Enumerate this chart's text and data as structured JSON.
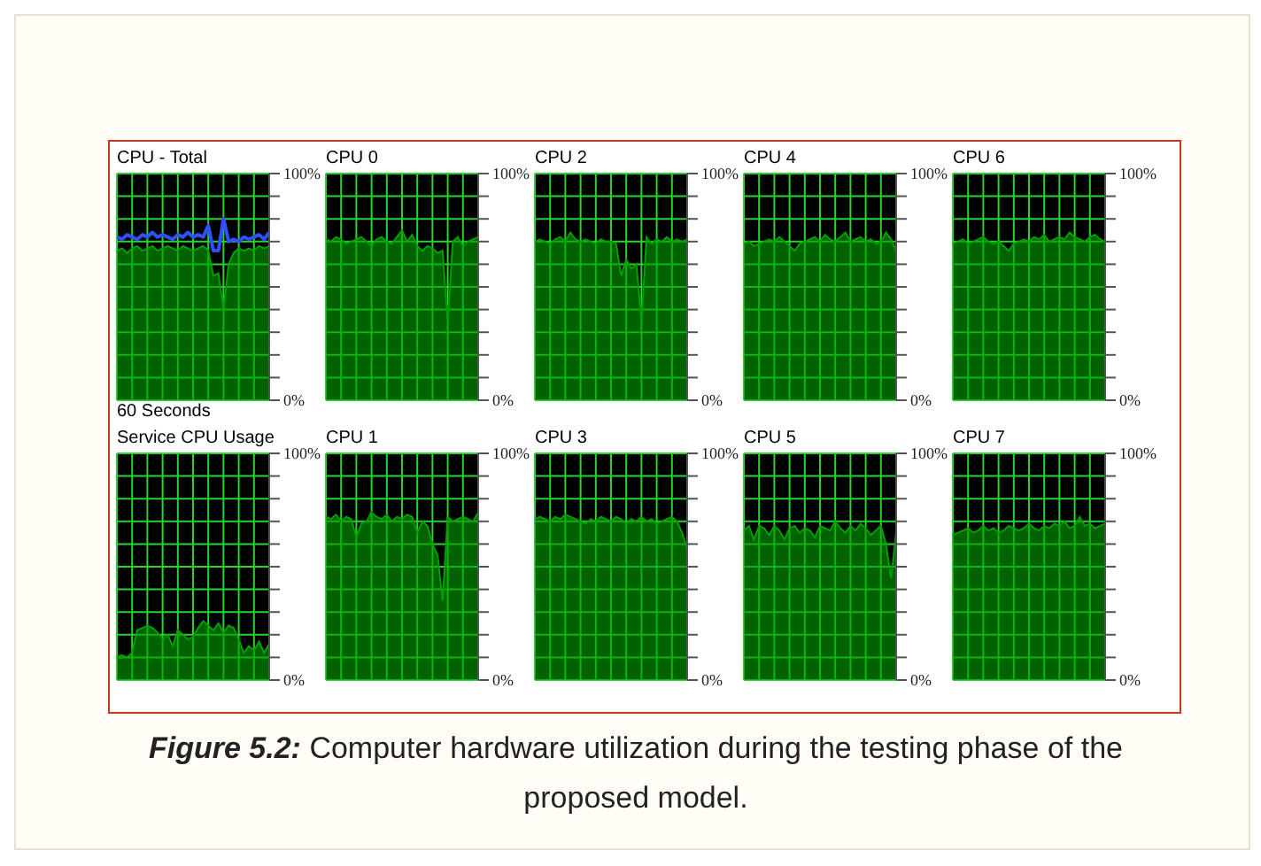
{
  "chart_data": [
    {
      "type": "area",
      "title": "CPU - Total",
      "xlabel": "60 Seconds",
      "annotations": [
        "Figure 5.2:",
        "Computer hardware utilization during the testing phase of the proposed model."
      ],
      "categories": [
        null,
        null,
        null,
        null,
        null,
        null,
        null,
        null,
        null,
        null,
        null,
        null,
        null,
        null,
        null,
        null,
        null,
        null,
        null,
        null,
        null,
        null,
        null,
        null,
        null,
        null,
        null,
        null,
        null,
        null,
        null
      ],
      "ylim": [
        0,
        100
      ],
      "yticks": [
        {
          "value": 0,
          "label": "0%"
        },
        {
          "value": 10,
          "label": null
        },
        {
          "value": 20,
          "label": null
        },
        {
          "value": 30,
          "label": null
        },
        {
          "value": 40,
          "label": null
        },
        {
          "value": 50,
          "label": null
        },
        {
          "value": 60,
          "label": null
        },
        {
          "value": 70,
          "label": null
        },
        {
          "value": 80,
          "label": null
        },
        {
          "value": 90,
          "label": null
        },
        {
          "value": 100,
          "label": "100%"
        }
      ],
      "grid": true,
      "tick_labels": "y",
      "series": [
        {
          "color": "#00a000",
          "values": [
            66,
            67,
            65,
            67,
            68,
            66,
            67,
            68,
            66,
            67,
            68,
            67,
            66,
            68,
            67,
            66,
            67,
            68,
            66,
            55,
            56,
            40,
            60,
            65,
            67,
            66,
            67,
            66,
            68,
            67,
            68
          ]
        },
        {
          "type": "line",
          "color": "#3050ff",
          "values": [
            72,
            71,
            73,
            72,
            71,
            73,
            72,
            74,
            72,
            73,
            72,
            71,
            73,
            72,
            74,
            72,
            73,
            72,
            77,
            66,
            66,
            80,
            70,
            71,
            70,
            72,
            71,
            72,
            73,
            71,
            74
          ]
        }
      ]
    },
    {
      "type": "area",
      "title": "CPU 0",
      "categories": [
        null,
        null,
        null,
        null,
        null,
        null,
        null,
        null,
        null,
        null,
        null,
        null,
        null,
        null,
        null,
        null,
        null,
        null,
        null,
        null,
        null,
        null,
        null,
        null,
        null,
        null,
        null,
        null,
        null,
        null,
        null
      ],
      "ylim": [
        0,
        100
      ],
      "yticks": [
        {
          "value": 0,
          "label": "0%"
        },
        {
          "value": 10,
          "label": null
        },
        {
          "value": 20,
          "label": null
        },
        {
          "value": 30,
          "label": null
        },
        {
          "value": 40,
          "label": null
        },
        {
          "value": 50,
          "label": null
        },
        {
          "value": 60,
          "label": null
        },
        {
          "value": 70,
          "label": null
        },
        {
          "value": 80,
          "label": null
        },
        {
          "value": 90,
          "label": null
        },
        {
          "value": 100,
          "label": "100%"
        }
      ],
      "grid": true,
      "tick_labels": "y",
      "series": [
        {
          "color": "#00a000",
          "values": [
            71,
            70,
            72,
            71,
            69,
            70,
            71,
            72,
            70,
            68,
            71,
            72,
            70,
            69,
            72,
            75,
            70,
            73,
            68,
            66,
            68,
            67,
            65,
            66,
            35,
            70,
            72,
            68,
            70,
            71,
            72
          ]
        }
      ]
    },
    {
      "type": "area",
      "title": "CPU 2",
      "categories": [
        null,
        null,
        null,
        null,
        null,
        null,
        null,
        null,
        null,
        null,
        null,
        null,
        null,
        null,
        null,
        null,
        null,
        null,
        null,
        null,
        null,
        null,
        null,
        null,
        null,
        null,
        null,
        null,
        null,
        null,
        null
      ],
      "ylim": [
        0,
        100
      ],
      "yticks": [
        {
          "value": 0,
          "label": "0%"
        },
        {
          "value": 10,
          "label": null
        },
        {
          "value": 20,
          "label": null
        },
        {
          "value": 30,
          "label": null
        },
        {
          "value": 40,
          "label": null
        },
        {
          "value": 50,
          "label": null
        },
        {
          "value": 60,
          "label": null
        },
        {
          "value": 70,
          "label": null
        },
        {
          "value": 80,
          "label": null
        },
        {
          "value": 90,
          "label": null
        },
        {
          "value": 100,
          "label": "100%"
        }
      ],
      "grid": true,
      "tick_labels": "y",
      "series": [
        {
          "color": "#00a000",
          "values": [
            70,
            71,
            70,
            69,
            71,
            72,
            70,
            74,
            71,
            70,
            71,
            70,
            69,
            71,
            70,
            70,
            69,
            55,
            62,
            58,
            60,
            35,
            72,
            69,
            71,
            70,
            72,
            70,
            71,
            70,
            71
          ]
        }
      ]
    },
    {
      "type": "area",
      "title": "CPU 4",
      "categories": [
        null,
        null,
        null,
        null,
        null,
        null,
        null,
        null,
        null,
        null,
        null,
        null,
        null,
        null,
        null,
        null,
        null,
        null,
        null,
        null,
        null,
        null,
        null,
        null,
        null,
        null,
        null,
        null,
        null,
        null,
        null
      ],
      "ylim": [
        0,
        100
      ],
      "yticks": [
        {
          "value": 0,
          "label": "0%"
        },
        {
          "value": 10,
          "label": null
        },
        {
          "value": 20,
          "label": null
        },
        {
          "value": 30,
          "label": null
        },
        {
          "value": 40,
          "label": null
        },
        {
          "value": 50,
          "label": null
        },
        {
          "value": 60,
          "label": null
        },
        {
          "value": 70,
          "label": null
        },
        {
          "value": 80,
          "label": null
        },
        {
          "value": 90,
          "label": null
        },
        {
          "value": 100,
          "label": "100%"
        }
      ],
      "grid": true,
      "tick_labels": "y",
      "series": [
        {
          "color": "#00a000",
          "values": [
            69,
            70,
            68,
            69,
            70,
            71,
            70,
            72,
            70,
            68,
            66,
            69,
            70,
            71,
            72,
            70,
            73,
            71,
            70,
            72,
            74,
            70,
            71,
            72,
            70,
            71,
            69,
            70,
            74,
            71,
            66
          ]
        }
      ]
    },
    {
      "type": "area",
      "title": "CPU 6",
      "categories": [
        null,
        null,
        null,
        null,
        null,
        null,
        null,
        null,
        null,
        null,
        null,
        null,
        null,
        null,
        null,
        null,
        null,
        null,
        null,
        null,
        null,
        null,
        null,
        null,
        null,
        null,
        null,
        null,
        null,
        null,
        null
      ],
      "ylim": [
        0,
        100
      ],
      "yticks": [
        {
          "value": 0,
          "label": "0%"
        },
        {
          "value": 10,
          "label": null
        },
        {
          "value": 20,
          "label": null
        },
        {
          "value": 30,
          "label": null
        },
        {
          "value": 40,
          "label": null
        },
        {
          "value": 50,
          "label": null
        },
        {
          "value": 60,
          "label": null
        },
        {
          "value": 70,
          "label": null
        },
        {
          "value": 80,
          "label": null
        },
        {
          "value": 90,
          "label": null
        },
        {
          "value": 100,
          "label": "100%"
        }
      ],
      "grid": true,
      "tick_labels": "y",
      "series": [
        {
          "color": "#00a000",
          "values": [
            69,
            70,
            71,
            69,
            70,
            71,
            72,
            70,
            69,
            70,
            68,
            66,
            69,
            70,
            71,
            70,
            72,
            71,
            73,
            70,
            71,
            72,
            71,
            74,
            72,
            71,
            70,
            72,
            73,
            71,
            70
          ]
        }
      ]
    },
    {
      "type": "area",
      "title": "Service CPU Usage",
      "categories": [
        null,
        null,
        null,
        null,
        null,
        null,
        null,
        null,
        null,
        null,
        null,
        null,
        null,
        null,
        null,
        null,
        null,
        null,
        null,
        null,
        null,
        null,
        null,
        null,
        null,
        null,
        null,
        null,
        null,
        null,
        null
      ],
      "ylim": [
        0,
        100
      ],
      "yticks": [
        {
          "value": 0,
          "label": "0%"
        },
        {
          "value": 10,
          "label": null
        },
        {
          "value": 20,
          "label": null
        },
        {
          "value": 30,
          "label": null
        },
        {
          "value": 40,
          "label": null
        },
        {
          "value": 50,
          "label": null
        },
        {
          "value": 60,
          "label": null
        },
        {
          "value": 70,
          "label": null
        },
        {
          "value": 80,
          "label": null
        },
        {
          "value": 90,
          "label": null
        },
        {
          "value": 100,
          "label": "100%"
        }
      ],
      "grid": true,
      "tick_labels": "y",
      "series": [
        {
          "color": "#00a000",
          "values": [
            10,
            11,
            10,
            12,
            22,
            23,
            24,
            23,
            21,
            18,
            20,
            15,
            22,
            20,
            18,
            19,
            23,
            26,
            24,
            22,
            25,
            21,
            24,
            23,
            18,
            12,
            15,
            13,
            17,
            12,
            16
          ]
        }
      ]
    },
    {
      "type": "area",
      "title": "CPU 1",
      "categories": [
        null,
        null,
        null,
        null,
        null,
        null,
        null,
        null,
        null,
        null,
        null,
        null,
        null,
        null,
        null,
        null,
        null,
        null,
        null,
        null,
        null,
        null,
        null,
        null,
        null,
        null,
        null,
        null,
        null,
        null,
        null
      ],
      "ylim": [
        0,
        100
      ],
      "yticks": [
        {
          "value": 0,
          "label": "0%"
        },
        {
          "value": 10,
          "label": null
        },
        {
          "value": 20,
          "label": null
        },
        {
          "value": 30,
          "label": null
        },
        {
          "value": 40,
          "label": null
        },
        {
          "value": 50,
          "label": null
        },
        {
          "value": 60,
          "label": null
        },
        {
          "value": 70,
          "label": null
        },
        {
          "value": 80,
          "label": null
        },
        {
          "value": 90,
          "label": null
        },
        {
          "value": 100,
          "label": "100%"
        }
      ],
      "grid": true,
      "tick_labels": "y",
      "series": [
        {
          "color": "#00a000",
          "values": [
            72,
            71,
            73,
            70,
            72,
            71,
            63,
            69,
            70,
            74,
            72,
            71,
            73,
            70,
            72,
            71,
            73,
            72,
            65,
            70,
            68,
            60,
            55,
            35,
            72,
            70,
            71,
            72,
            71,
            70,
            74
          ]
        }
      ]
    },
    {
      "type": "area",
      "title": "CPU 3",
      "categories": [
        null,
        null,
        null,
        null,
        null,
        null,
        null,
        null,
        null,
        null,
        null,
        null,
        null,
        null,
        null,
        null,
        null,
        null,
        null,
        null,
        null,
        null,
        null,
        null,
        null,
        null,
        null,
        null,
        null,
        null,
        null
      ],
      "ylim": [
        0,
        100
      ],
      "yticks": [
        {
          "value": 0,
          "label": "0%"
        },
        {
          "value": 10,
          "label": null
        },
        {
          "value": 20,
          "label": null
        },
        {
          "value": 30,
          "label": null
        },
        {
          "value": 40,
          "label": null
        },
        {
          "value": 50,
          "label": null
        },
        {
          "value": 60,
          "label": null
        },
        {
          "value": 70,
          "label": null
        },
        {
          "value": 80,
          "label": null
        },
        {
          "value": 90,
          "label": null
        },
        {
          "value": 100,
          "label": "100%"
        }
      ],
      "grid": true,
      "tick_labels": "y",
      "series": [
        {
          "color": "#00a000",
          "values": [
            71,
            72,
            71,
            70,
            72,
            71,
            73,
            72,
            71,
            70,
            69,
            71,
            70,
            72,
            71,
            70,
            72,
            71,
            69,
            71,
            70,
            72,
            70,
            71,
            69,
            70,
            71,
            72,
            70,
            65,
            58
          ]
        }
      ]
    },
    {
      "type": "area",
      "title": "CPU 5",
      "categories": [
        null,
        null,
        null,
        null,
        null,
        null,
        null,
        null,
        null,
        null,
        null,
        null,
        null,
        null,
        null,
        null,
        null,
        null,
        null,
        null,
        null,
        null,
        null,
        null,
        null,
        null,
        null,
        null,
        null,
        null,
        null
      ],
      "ylim": [
        0,
        100
      ],
      "yticks": [
        {
          "value": 0,
          "label": "0%"
        },
        {
          "value": 10,
          "label": null
        },
        {
          "value": 20,
          "label": null
        },
        {
          "value": 30,
          "label": null
        },
        {
          "value": 40,
          "label": null
        },
        {
          "value": 50,
          "label": null
        },
        {
          "value": 60,
          "label": null
        },
        {
          "value": 70,
          "label": null
        },
        {
          "value": 80,
          "label": null
        },
        {
          "value": 90,
          "label": null
        },
        {
          "value": 100,
          "label": "100%"
        }
      ],
      "grid": true,
      "tick_labels": "y",
      "series": [
        {
          "color": "#00a000",
          "values": [
            66,
            68,
            62,
            68,
            67,
            64,
            68,
            66,
            62,
            67,
            68,
            65,
            67,
            66,
            63,
            68,
            67,
            66,
            70,
            67,
            65,
            68,
            66,
            69,
            67,
            64,
            66,
            68,
            60,
            45,
            65
          ]
        }
      ]
    },
    {
      "type": "area",
      "title": "CPU 7",
      "categories": [
        null,
        null,
        null,
        null,
        null,
        null,
        null,
        null,
        null,
        null,
        null,
        null,
        null,
        null,
        null,
        null,
        null,
        null,
        null,
        null,
        null,
        null,
        null,
        null,
        null,
        null,
        null,
        null,
        null,
        null,
        null
      ],
      "ylim": [
        0,
        100
      ],
      "yticks": [
        {
          "value": 0,
          "label": "0%"
        },
        {
          "value": 10,
          "label": null
        },
        {
          "value": 20,
          "label": null
        },
        {
          "value": 30,
          "label": null
        },
        {
          "value": 40,
          "label": null
        },
        {
          "value": 50,
          "label": null
        },
        {
          "value": 60,
          "label": null
        },
        {
          "value": 70,
          "label": null
        },
        {
          "value": 80,
          "label": null
        },
        {
          "value": 90,
          "label": null
        },
        {
          "value": 100,
          "label": "100%"
        }
      ],
      "grid": true,
      "tick_labels": "y",
      "series": [
        {
          "color": "#00a000",
          "values": [
            64,
            65,
            66,
            67,
            65,
            66,
            68,
            66,
            67,
            65,
            66,
            68,
            67,
            66,
            67,
            69,
            67,
            66,
            68,
            67,
            69,
            68,
            70,
            67,
            68,
            72,
            68,
            69,
            67,
            68,
            69
          ]
        }
      ]
    }
  ]
}
